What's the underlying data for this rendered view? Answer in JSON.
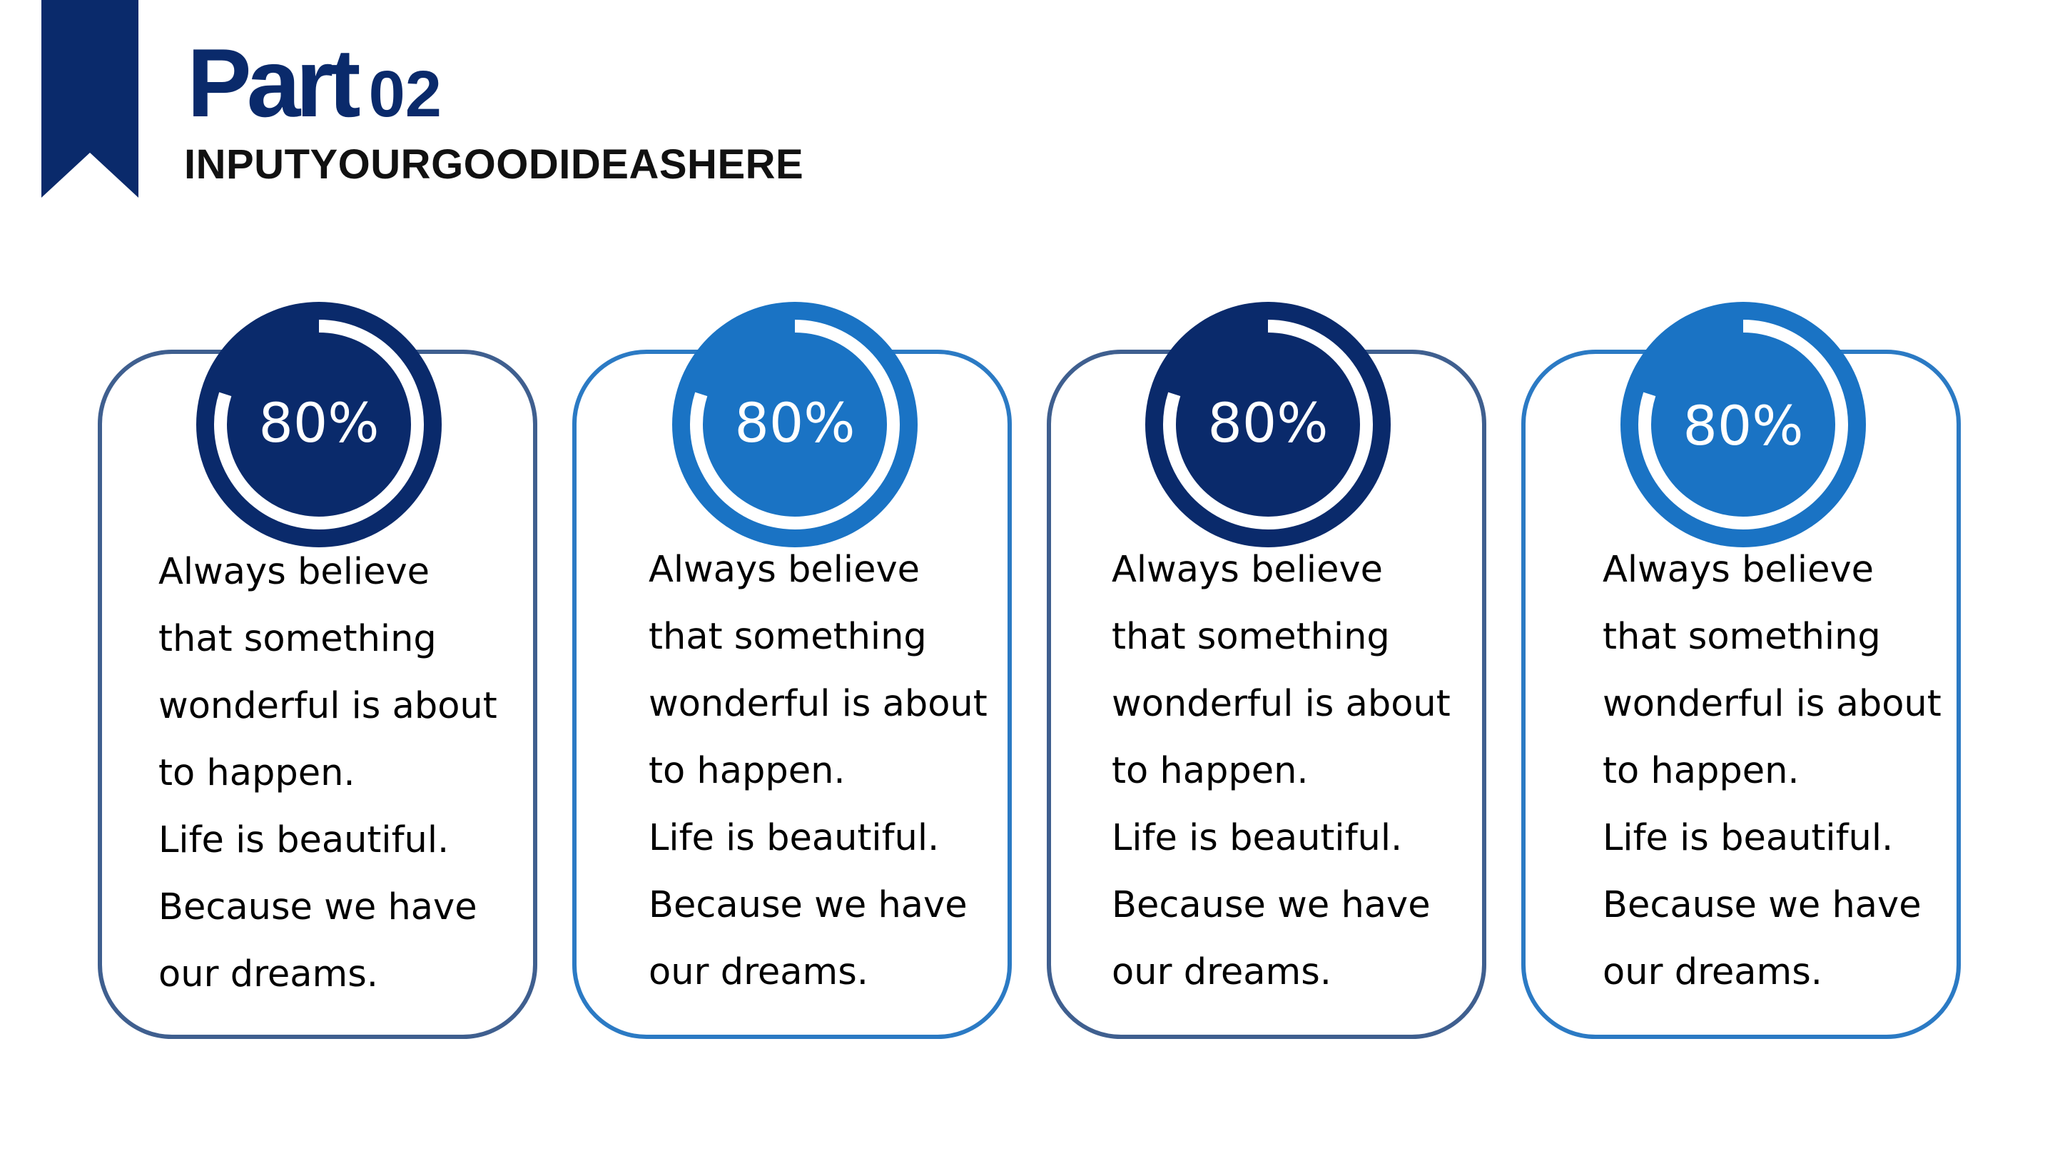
{
  "header": {
    "title_word": "Part",
    "title_number": "02",
    "subtitle": "INPUTYOURGOODIDEASHERE"
  },
  "colors": {
    "navy": "#0a2a6b",
    "navy_border": "#3f5f8f",
    "blue": "#1a73c4",
    "blue_border": "#2b7ac4"
  },
  "cards": [
    {
      "percent": "80%",
      "lines": [
        "Always believe",
        "that something",
        "wonderful is about",
        "to happen.",
        "Life is beautiful.",
        "Because we have",
        "our dreams."
      ],
      "progress": 0.8,
      "color_theme": "navy"
    },
    {
      "percent": "80%",
      "lines": [
        "Always believe",
        "that something",
        "wonderful is about",
        "to happen.",
        "Life is beautiful.",
        "Because we have",
        "our dreams."
      ],
      "progress": 0.8,
      "color_theme": "blue"
    },
    {
      "percent": "80%",
      "lines": [
        "Always believe",
        "that something",
        "wonderful is about",
        "to happen.",
        "Life is beautiful.",
        "Because we have",
        "our dreams."
      ],
      "progress": 0.8,
      "color_theme": "navy"
    },
    {
      "percent": "80%",
      "lines": [
        "Always believe",
        "that something",
        "wonderful is about",
        "to happen.",
        "Life is beautiful.",
        "Because we have",
        "our dreams."
      ],
      "progress": 0.8,
      "color_theme": "blue"
    }
  ]
}
